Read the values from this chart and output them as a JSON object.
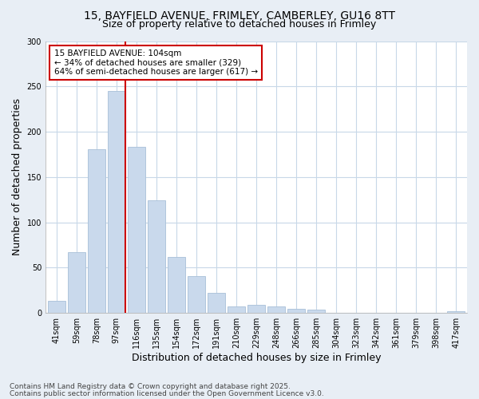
{
  "title_line1": "15, BAYFIELD AVENUE, FRIMLEY, CAMBERLEY, GU16 8TT",
  "title_line2": "Size of property relative to detached houses in Frimley",
  "xlabel": "Distribution of detached houses by size in Frimley",
  "ylabel": "Number of detached properties",
  "categories": [
    "41sqm",
    "59sqm",
    "78sqm",
    "97sqm",
    "116sqm",
    "135sqm",
    "154sqm",
    "172sqm",
    "191sqm",
    "210sqm",
    "229sqm",
    "248sqm",
    "266sqm",
    "285sqm",
    "304sqm",
    "323sqm",
    "342sqm",
    "361sqm",
    "379sqm",
    "398sqm",
    "417sqm"
  ],
  "values": [
    13,
    67,
    181,
    245,
    183,
    124,
    62,
    41,
    22,
    7,
    9,
    7,
    5,
    4,
    0,
    0,
    0,
    0,
    0,
    0,
    2
  ],
  "bar_color": "#c9d9ec",
  "bar_edge_color": "#a8bfd8",
  "highlight_index": 3,
  "highlight_color": "#cc0000",
  "annotation_text": "15 BAYFIELD AVENUE: 104sqm\n← 34% of detached houses are smaller (329)\n64% of semi-detached houses are larger (617) →",
  "annotation_box_facecolor": "#ffffff",
  "annotation_box_edgecolor": "#cc0000",
  "ylim": [
    0,
    300
  ],
  "yticks": [
    0,
    50,
    100,
    150,
    200,
    250,
    300
  ],
  "footer_line1": "Contains HM Land Registry data © Crown copyright and database right 2025.",
  "footer_line2": "Contains public sector information licensed under the Open Government Licence v3.0.",
  "bg_color": "#e8eef5",
  "plot_bg_color": "#ffffff",
  "grid_color": "#c8d8e8",
  "title_fontsize": 10,
  "subtitle_fontsize": 9,
  "axis_label_fontsize": 9,
  "tick_fontsize": 7,
  "annotation_fontsize": 7.5,
  "footer_fontsize": 6.5
}
